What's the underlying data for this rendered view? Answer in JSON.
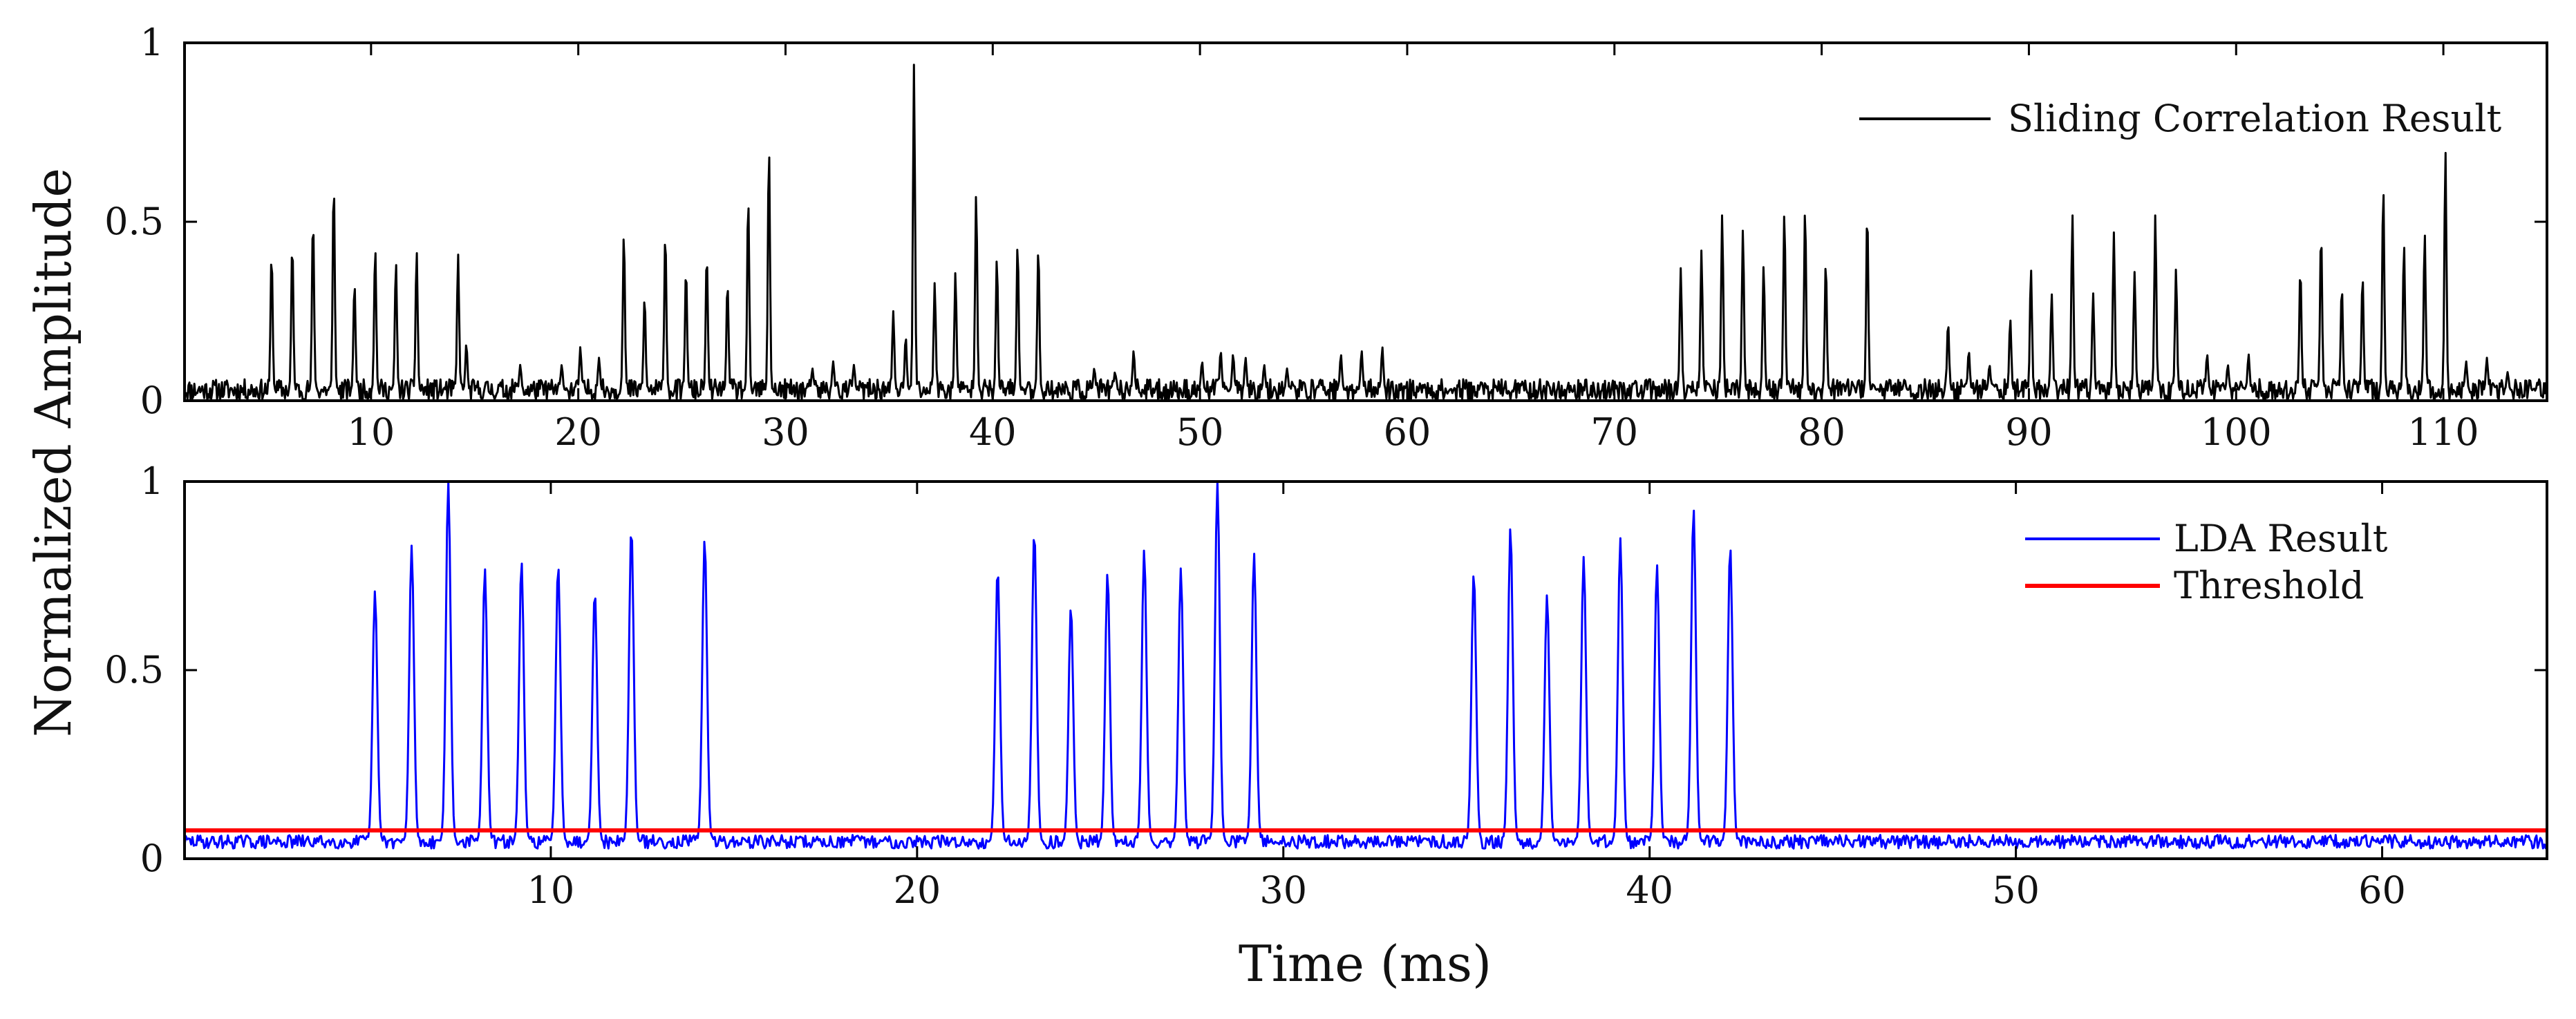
{
  "figure": {
    "ylabel": "Normalized Amplitude",
    "xlabel": "Time (ms)"
  },
  "chart_data": [
    {
      "type": "line",
      "title": "",
      "xlabel": "",
      "ylabel": "Normalized Amplitude",
      "xlim": [
        1,
        115
      ],
      "ylim": [
        0,
        1
      ],
      "xticks": [
        10,
        20,
        30,
        40,
        50,
        60,
        70,
        80,
        90,
        100,
        110
      ],
      "yticks": [
        0,
        0.5,
        1
      ],
      "xtick_labels": [
        "10",
        "20",
        "30",
        "40",
        "50",
        "60",
        "70",
        "80",
        "90",
        "100",
        "110"
      ],
      "ytick_labels": [
        "0",
        "0.5",
        "1"
      ],
      "legend": {
        "placement": "top-right",
        "entries": [
          "Sliding Correlation Result"
        ]
      },
      "series": [
        {
          "name": "Sliding Correlation Result",
          "color": "#000000",
          "baseline": 0.03,
          "noise_amplitude": 0.03,
          "peaks": [
            [
              5.2,
              0.41
            ],
            [
              6.2,
              0.44
            ],
            [
              7.2,
              0.51
            ],
            [
              8.2,
              0.61
            ],
            [
              9.2,
              0.33
            ],
            [
              10.2,
              0.43
            ],
            [
              11.2,
              0.39
            ],
            [
              12.2,
              0.42
            ],
            [
              14.2,
              0.41
            ],
            [
              14.6,
              0.16
            ],
            [
              17.2,
              0.1
            ],
            [
              19.2,
              0.1
            ],
            [
              20.1,
              0.15
            ],
            [
              21.0,
              0.12
            ],
            [
              22.2,
              0.47
            ],
            [
              23.2,
              0.29
            ],
            [
              24.2,
              0.47
            ],
            [
              25.2,
              0.37
            ],
            [
              26.2,
              0.41
            ],
            [
              27.2,
              0.33
            ],
            [
              28.2,
              0.57
            ],
            [
              29.2,
              0.71
            ],
            [
              31.3,
              0.09
            ],
            [
              32.3,
              0.11
            ],
            [
              33.3,
              0.1
            ],
            [
              35.2,
              0.25
            ],
            [
              35.8,
              0.18
            ],
            [
              36.2,
              0.94
            ],
            [
              37.2,
              0.33
            ],
            [
              38.2,
              0.36
            ],
            [
              39.2,
              0.58
            ],
            [
              40.2,
              0.4
            ],
            [
              41.2,
              0.44
            ],
            [
              42.2,
              0.43
            ],
            [
              44.9,
              0.09
            ],
            [
              45.9,
              0.08
            ],
            [
              46.8,
              0.14
            ],
            [
              50.1,
              0.11
            ],
            [
              51.0,
              0.14
            ],
            [
              51.6,
              0.13
            ],
            [
              52.2,
              0.12
            ],
            [
              53.1,
              0.1
            ],
            [
              54.2,
              0.09
            ],
            [
              55.8,
              0.06
            ],
            [
              56.8,
              0.13
            ],
            [
              57.8,
              0.14
            ],
            [
              58.8,
              0.15
            ],
            [
              73.2,
              0.37
            ],
            [
              74.2,
              0.42
            ],
            [
              75.2,
              0.52
            ],
            [
              76.2,
              0.48
            ],
            [
              77.2,
              0.38
            ],
            [
              78.2,
              0.53
            ],
            [
              79.2,
              0.54
            ],
            [
              80.2,
              0.39
            ],
            [
              82.2,
              0.53
            ],
            [
              84.0,
              0.06
            ],
            [
              86.1,
              0.22
            ],
            [
              87.1,
              0.14
            ],
            [
              88.1,
              0.1
            ],
            [
              89.1,
              0.23
            ],
            [
              90.1,
              0.37
            ],
            [
              91.1,
              0.3
            ],
            [
              92.1,
              0.52
            ],
            [
              93.1,
              0.3
            ],
            [
              94.1,
              0.47
            ],
            [
              95.1,
              0.36
            ],
            [
              96.1,
              0.52
            ],
            [
              97.1,
              0.37
            ],
            [
              98.6,
              0.13
            ],
            [
              99.6,
              0.1
            ],
            [
              100.6,
              0.13
            ],
            [
              103.1,
              0.37
            ],
            [
              104.1,
              0.47
            ],
            [
              105.1,
              0.32
            ],
            [
              106.1,
              0.35
            ],
            [
              107.1,
              0.6
            ],
            [
              108.1,
              0.44
            ],
            [
              109.1,
              0.47
            ],
            [
              110.1,
              0.7
            ],
            [
              111.1,
              0.11
            ],
            [
              112.1,
              0.12
            ],
            [
              113.1,
              0.08
            ]
          ]
        }
      ]
    },
    {
      "type": "line",
      "title": "",
      "xlabel": "Time (ms)",
      "ylabel": "Normalized Amplitude",
      "xlim": [
        0,
        64.5
      ],
      "ylim": [
        0,
        1
      ],
      "xticks": [
        10,
        20,
        30,
        40,
        50,
        60
      ],
      "yticks": [
        0,
        0.5,
        1
      ],
      "xtick_labels": [
        "10",
        "20",
        "30",
        "40",
        "50",
        "60"
      ],
      "ytick_labels": [
        "0",
        "0.5",
        "1"
      ],
      "legend": {
        "placement": "top-right",
        "entries": [
          "LDA Result",
          "Threshold"
        ]
      },
      "series": [
        {
          "name": "LDA Result",
          "color": "#0000ff",
          "baseline": 0.045,
          "noise_amplitude": 0.018,
          "peaks": [
            [
              5.2,
              0.71
            ],
            [
              6.2,
              0.83
            ],
            [
              7.2,
              1.0
            ],
            [
              8.2,
              0.77
            ],
            [
              9.2,
              0.79
            ],
            [
              10.2,
              0.78
            ],
            [
              11.2,
              0.71
            ],
            [
              12.2,
              0.88
            ],
            [
              14.2,
              0.85
            ],
            [
              22.2,
              0.77
            ],
            [
              23.2,
              0.87
            ],
            [
              24.2,
              0.67
            ],
            [
              25.2,
              0.76
            ],
            [
              26.2,
              0.82
            ],
            [
              27.2,
              0.77
            ],
            [
              28.2,
              1.0
            ],
            [
              29.2,
              0.81
            ],
            [
              35.2,
              0.76
            ],
            [
              36.2,
              0.88
            ],
            [
              37.2,
              0.7
            ],
            [
              38.2,
              0.8
            ],
            [
              39.2,
              0.85
            ],
            [
              40.2,
              0.78
            ],
            [
              41.2,
              0.93
            ],
            [
              42.2,
              0.83
            ]
          ]
        },
        {
          "name": "Threshold",
          "color": "#ff0000",
          "constant": 0.075
        }
      ]
    }
  ]
}
